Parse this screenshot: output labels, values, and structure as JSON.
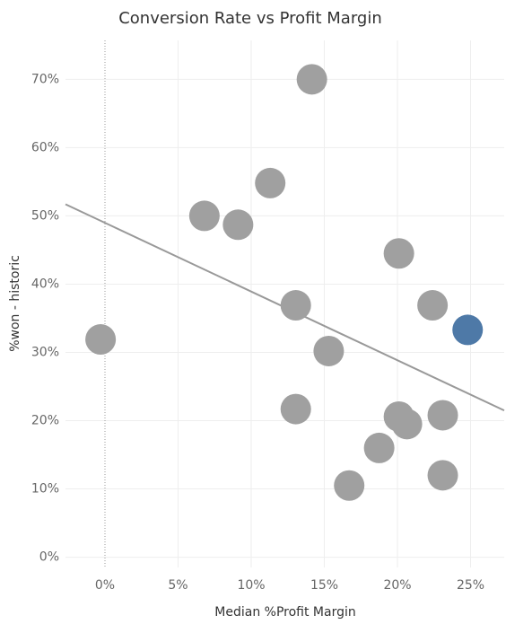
{
  "chart_data": {
    "type": "scatter",
    "title": "Conversion Rate vs Profit Margin",
    "x_label": "Median %Profit Margin",
    "y_label": "%won - historic",
    "x": [
      14.15,
      11.3,
      6.8,
      9.1,
      20.1,
      13.05,
      22.4,
      24.8,
      -0.3,
      15.3,
      13.05,
      20.1,
      20.65,
      23.1,
      18.75,
      23.1,
      16.7
    ],
    "y": [
      70,
      54.8,
      50,
      48.7,
      44.5,
      36.9,
      36.9,
      33.3,
      31.9,
      30.2,
      21.7,
      20.6,
      19.5,
      20.8,
      16,
      12,
      10.5
    ],
    "colors": [
      "#a0a0a0",
      "#a0a0a0",
      "#a0a0a0",
      "#a0a0a0",
      "#a0a0a0",
      "#a0a0a0",
      "#a0a0a0",
      "#4e79a7",
      "#a0a0a0",
      "#a0a0a0",
      "#a0a0a0",
      "#a0a0a0",
      "#a0a0a0",
      "#a0a0a0",
      "#a0a0a0",
      "#a0a0a0",
      "#a0a0a0"
    ],
    "trend_line": {
      "x": [
        -2.7,
        27.3
      ],
      "y": [
        51.7,
        21.5
      ],
      "color": "#999999"
    },
    "xlim": [
      -2.7,
      27.3
    ],
    "ylim": [
      -1.5,
      75.7
    ],
    "xticks": [
      {
        "value": 0,
        "label": "0%"
      },
      {
        "value": 5,
        "label": "5%"
      },
      {
        "value": 10,
        "label": "10%"
      },
      {
        "value": 15,
        "label": "15%"
      },
      {
        "value": 20,
        "label": "20%"
      },
      {
        "value": 25,
        "label": "25%"
      }
    ],
    "yticks": [
      {
        "value": 0,
        "label": "0%"
      },
      {
        "value": 10,
        "label": "10%"
      },
      {
        "value": 20,
        "label": "20%"
      },
      {
        "value": 30,
        "label": "30%"
      },
      {
        "value": 40,
        "label": "40%"
      },
      {
        "value": 50,
        "label": "50%"
      },
      {
        "value": 60,
        "label": "60%"
      },
      {
        "value": 70,
        "label": "70%"
      }
    ],
    "grid": true
  }
}
